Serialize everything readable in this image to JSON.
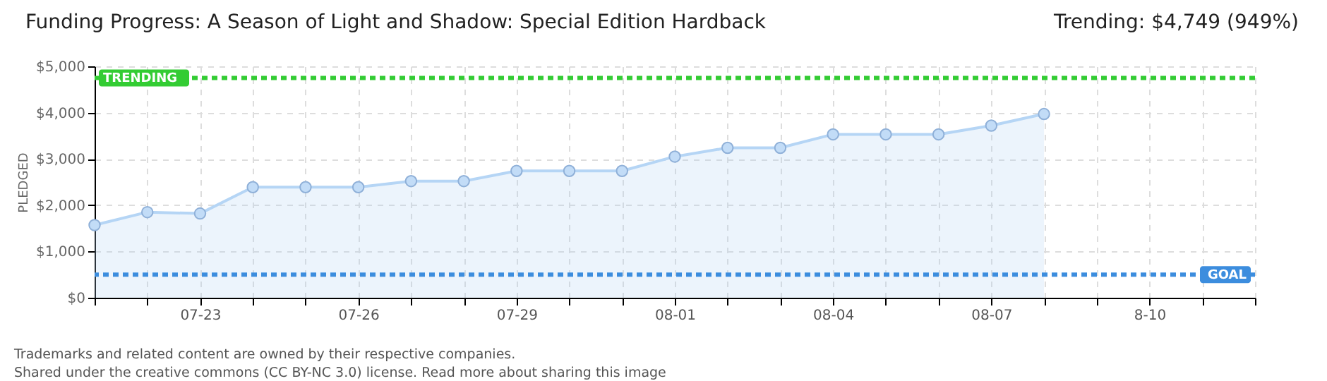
{
  "chart_data": {
    "type": "area",
    "title": "Funding Progress: A Season of Light and Shadow: Special Edition Hardback",
    "subtitle": "Trending: $4,749 (949%)",
    "ylabel": "PLEDGED",
    "categories": [
      null,
      null,
      "07-23",
      null,
      null,
      "07-26",
      null,
      null,
      "07-29",
      null,
      null,
      "08-01",
      null,
      null,
      "08-04",
      null,
      null,
      "08-07",
      null,
      null,
      "8-10",
      null,
      null
    ],
    "series": [
      {
        "color": "#b5d5f5",
        "values": [
          1570,
          1850,
          1820,
          2390,
          2390,
          2390,
          2520,
          2520,
          2740,
          2740,
          2740,
          3050,
          3240,
          3240,
          3530,
          3530,
          3530,
          3720,
          3970,
          null,
          null,
          null,
          null
        ]
      }
    ],
    "ylim": [
      0,
      5000
    ],
    "yticks": [
      {
        "value": 0,
        "label": "$0"
      },
      {
        "value": 1000,
        "label": "$1,000"
      },
      {
        "value": 2000,
        "label": "$2,000"
      },
      {
        "value": 3000,
        "label": "$3,000"
      },
      {
        "value": 4000,
        "label": "$4,000"
      },
      {
        "value": 5000,
        "label": "$5,000"
      }
    ],
    "ref_lines": [
      {
        "axis": "y",
        "value": 4749,
        "label": "TRENDING",
        "color": "#33cc33",
        "line_style": "dashed"
      },
      {
        "axis": "y",
        "value": 500,
        "label": "GOAL",
        "color": "#3c8dde",
        "line_style": "dashed"
      }
    ],
    "grid": true,
    "marker": "circle",
    "annotations": [
      "Trademarks and related content are owned by their respective companies.",
      "Shared under the creative commons (CC BY-NC 3.0) license. Read more about sharing this image"
    ]
  }
}
